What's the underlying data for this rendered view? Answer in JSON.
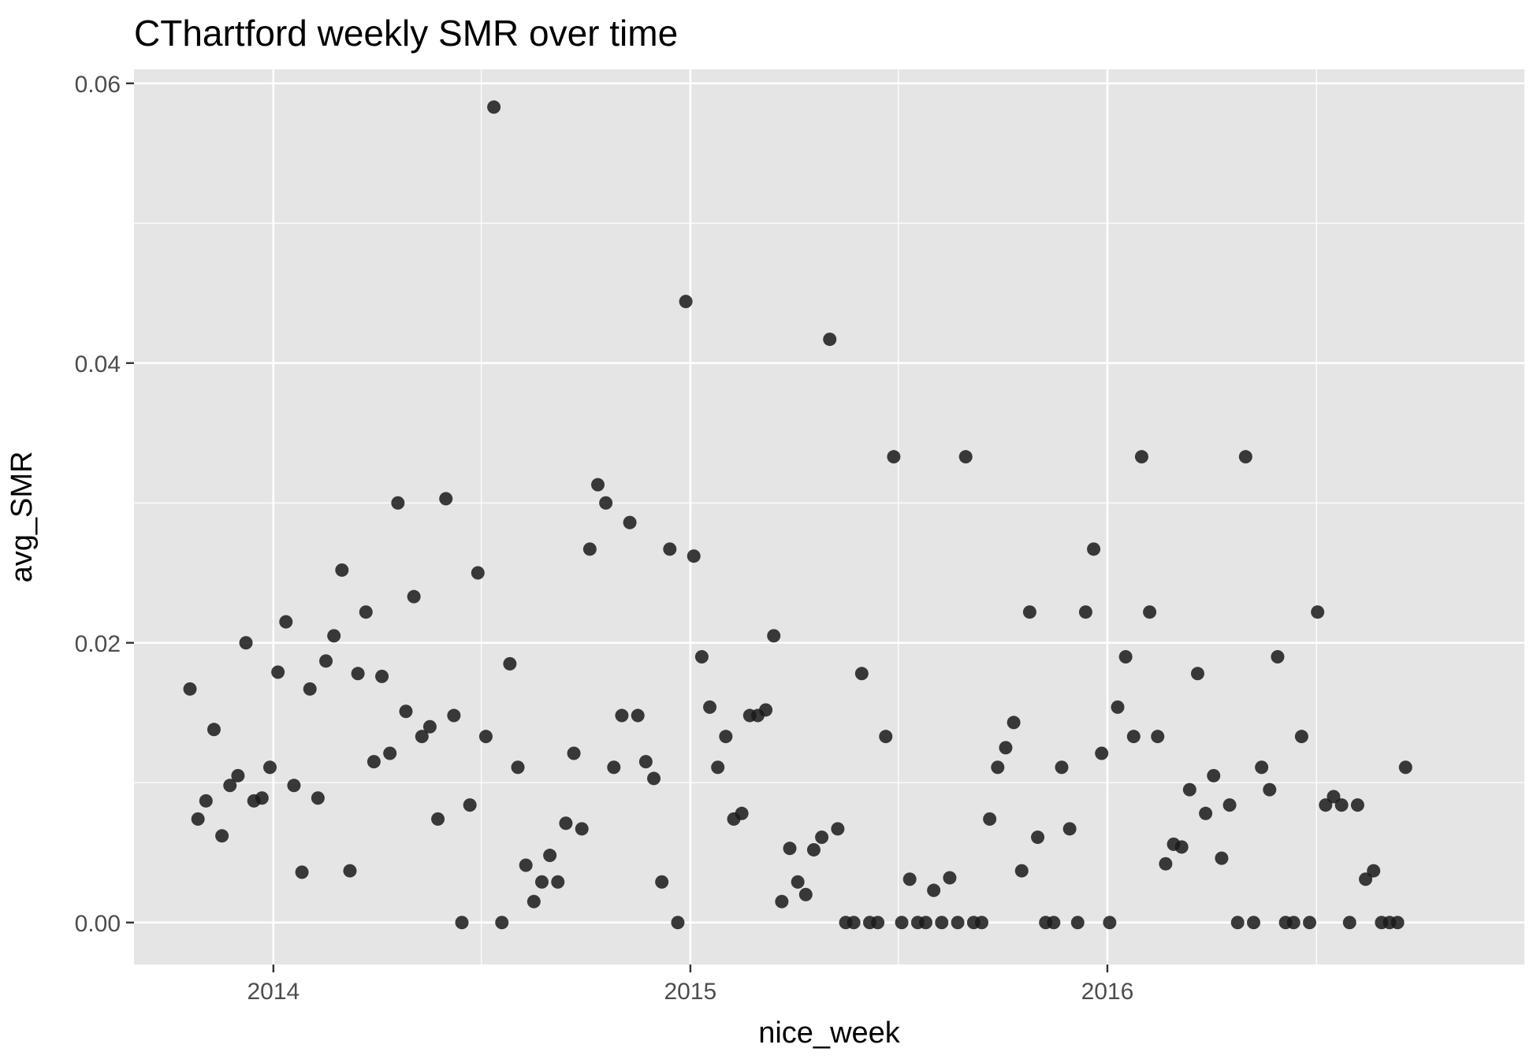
{
  "chart_data": {
    "type": "scatter",
    "title": "CThartford weekly SMR over time",
    "xlabel": "nice_week",
    "ylabel": "avg_SMR",
    "x_ticks": [
      "2014",
      "2015",
      "2016"
    ],
    "y_ticks": [
      "0.00",
      "0.02",
      "0.04",
      "0.06"
    ],
    "xlim": [
      "2013-09-01",
      "2016-12-31"
    ],
    "ylim": [
      -0.003,
      0.061
    ],
    "grid": true,
    "colors": {
      "panel_background": "#e5e5e5",
      "grid": "#ffffff",
      "point": "#1a1a1a",
      "tick_label": "#4d4d4d",
      "tick_mark": "#333333"
    },
    "series": [
      {
        "points": [
          [
            "2013-10-20",
            0.0167
          ],
          [
            "2013-10-27",
            0.0074
          ],
          [
            "2013-11-03",
            0.0087
          ],
          [
            "2013-11-10",
            0.0138
          ],
          [
            "2013-11-17",
            0.0062
          ],
          [
            "2013-11-24",
            0.0098
          ],
          [
            "2013-12-01",
            0.0105
          ],
          [
            "2013-12-08",
            0.02
          ],
          [
            "2013-12-15",
            0.0087
          ],
          [
            "2013-12-22",
            0.0089
          ],
          [
            "2013-12-29",
            0.0111
          ],
          [
            "2014-01-05",
            0.0179
          ],
          [
            "2014-01-12",
            0.0215
          ],
          [
            "2014-01-19",
            0.0098
          ],
          [
            "2014-01-26",
            0.0036
          ],
          [
            "2014-02-02",
            0.0167
          ],
          [
            "2014-02-09",
            0.0089
          ],
          [
            "2014-02-16",
            0.0187
          ],
          [
            "2014-02-23",
            0.0205
          ],
          [
            "2014-03-02",
            0.0252
          ],
          [
            "2014-03-09",
            0.0037
          ],
          [
            "2014-03-16",
            0.0178
          ],
          [
            "2014-03-23",
            0.0222
          ],
          [
            "2014-03-30",
            0.0115
          ],
          [
            "2014-04-06",
            0.0176
          ],
          [
            "2014-04-13",
            0.0121
          ],
          [
            "2014-04-20",
            0.03
          ],
          [
            "2014-04-27",
            0.0151
          ],
          [
            "2014-05-04",
            0.0233
          ],
          [
            "2014-05-11",
            0.0133
          ],
          [
            "2014-05-18",
            0.014
          ],
          [
            "2014-05-25",
            0.0074
          ],
          [
            "2014-06-01",
            0.0303
          ],
          [
            "2014-06-08",
            0.0148
          ],
          [
            "2014-06-15",
            0.0
          ],
          [
            "2014-06-22",
            0.0084
          ],
          [
            "2014-06-29",
            0.025
          ],
          [
            "2014-07-06",
            0.0133
          ],
          [
            "2014-07-13",
            0.0583
          ],
          [
            "2014-07-20",
            0.0
          ],
          [
            "2014-07-27",
            0.0185
          ],
          [
            "2014-08-03",
            0.0111
          ],
          [
            "2014-08-10",
            0.0041
          ],
          [
            "2014-08-17",
            0.0015
          ],
          [
            "2014-08-24",
            0.0029
          ],
          [
            "2014-08-31",
            0.0048
          ],
          [
            "2014-09-07",
            0.0029
          ],
          [
            "2014-09-14",
            0.0071
          ],
          [
            "2014-09-21",
            0.0121
          ],
          [
            "2014-09-28",
            0.0067
          ],
          [
            "2014-10-05",
            0.0267
          ],
          [
            "2014-10-12",
            0.0313
          ],
          [
            "2014-10-19",
            0.03
          ],
          [
            "2014-10-26",
            0.0111
          ],
          [
            "2014-11-02",
            0.0148
          ],
          [
            "2014-11-09",
            0.0286
          ],
          [
            "2014-11-16",
            0.0148
          ],
          [
            "2014-11-23",
            0.0115
          ],
          [
            "2014-11-30",
            0.0103
          ],
          [
            "2014-12-07",
            0.0029
          ],
          [
            "2014-12-14",
            0.0267
          ],
          [
            "2014-12-21",
            0.0
          ],
          [
            "2014-12-28",
            0.0444
          ],
          [
            "2015-01-04",
            0.0262
          ],
          [
            "2015-01-11",
            0.019
          ],
          [
            "2015-01-18",
            0.0154
          ],
          [
            "2015-01-25",
            0.0111
          ],
          [
            "2015-02-01",
            0.0133
          ],
          [
            "2015-02-08",
            0.0074
          ],
          [
            "2015-02-15",
            0.0078
          ],
          [
            "2015-02-22",
            0.0148
          ],
          [
            "2015-03-01",
            0.0148
          ],
          [
            "2015-03-08",
            0.0152
          ],
          [
            "2015-03-15",
            0.0205
          ],
          [
            "2015-03-22",
            0.0015
          ],
          [
            "2015-03-29",
            0.0053
          ],
          [
            "2015-04-05",
            0.0029
          ],
          [
            "2015-04-12",
            0.002
          ],
          [
            "2015-04-19",
            0.0052
          ],
          [
            "2015-04-26",
            0.0061
          ],
          [
            "2015-05-03",
            0.0417
          ],
          [
            "2015-05-10",
            0.0067
          ],
          [
            "2015-05-17",
            0.0
          ],
          [
            "2015-05-24",
            0.0
          ],
          [
            "2015-05-31",
            0.0178
          ],
          [
            "2015-06-07",
            0.0
          ],
          [
            "2015-06-14",
            0.0
          ],
          [
            "2015-06-21",
            0.0133
          ],
          [
            "2015-06-28",
            0.0333
          ],
          [
            "2015-07-05",
            0.0
          ],
          [
            "2015-07-12",
            0.0031
          ],
          [
            "2015-07-19",
            0.0
          ],
          [
            "2015-07-26",
            0.0
          ],
          [
            "2015-08-02",
            0.0023
          ],
          [
            "2015-08-09",
            0.0
          ],
          [
            "2015-08-16",
            0.0032
          ],
          [
            "2015-08-23",
            0.0
          ],
          [
            "2015-08-30",
            0.0333
          ],
          [
            "2015-09-06",
            0.0
          ],
          [
            "2015-09-13",
            0.0
          ],
          [
            "2015-09-20",
            0.0074
          ],
          [
            "2015-09-27",
            0.0111
          ],
          [
            "2015-10-04",
            0.0125
          ],
          [
            "2015-10-11",
            0.0143
          ],
          [
            "2015-10-18",
            0.0037
          ],
          [
            "2015-10-25",
            0.0222
          ],
          [
            "2015-11-01",
            0.0061
          ],
          [
            "2015-11-08",
            0.0
          ],
          [
            "2015-11-15",
            0.0
          ],
          [
            "2015-11-22",
            0.0111
          ],
          [
            "2015-11-29",
            0.0067
          ],
          [
            "2015-12-06",
            0.0
          ],
          [
            "2015-12-13",
            0.0222
          ],
          [
            "2015-12-20",
            0.0267
          ],
          [
            "2015-12-27",
            0.0121
          ],
          [
            "2016-01-03",
            0.0
          ],
          [
            "2016-01-10",
            0.0154
          ],
          [
            "2016-01-17",
            0.019
          ],
          [
            "2016-01-24",
            0.0133
          ],
          [
            "2016-01-31",
            0.0333
          ],
          [
            "2016-02-07",
            0.0222
          ],
          [
            "2016-02-14",
            0.0133
          ],
          [
            "2016-02-21",
            0.0042
          ],
          [
            "2016-02-28",
            0.0056
          ],
          [
            "2016-03-06",
            0.0054
          ],
          [
            "2016-03-13",
            0.0095
          ],
          [
            "2016-03-20",
            0.0178
          ],
          [
            "2016-03-27",
            0.0078
          ],
          [
            "2016-04-03",
            0.0105
          ],
          [
            "2016-04-10",
            0.0046
          ],
          [
            "2016-04-17",
            0.0084
          ],
          [
            "2016-04-24",
            0.0
          ],
          [
            "2016-05-01",
            0.0333
          ],
          [
            "2016-05-08",
            0.0
          ],
          [
            "2016-05-15",
            0.0111
          ],
          [
            "2016-05-22",
            0.0095
          ],
          [
            "2016-05-29",
            0.019
          ],
          [
            "2016-06-05",
            0.0
          ],
          [
            "2016-06-12",
            0.0
          ],
          [
            "2016-06-19",
            0.0133
          ],
          [
            "2016-06-26",
            0.0
          ],
          [
            "2016-07-03",
            0.0222
          ],
          [
            "2016-07-10",
            0.0084
          ],
          [
            "2016-07-17",
            0.009
          ],
          [
            "2016-07-24",
            0.0084
          ],
          [
            "2016-07-31",
            0.0
          ],
          [
            "2016-08-07",
            0.0084
          ],
          [
            "2016-08-14",
            0.0031
          ],
          [
            "2016-08-21",
            0.0037
          ],
          [
            "2016-08-28",
            0.0
          ],
          [
            "2016-09-04",
            0.0
          ],
          [
            "2016-09-11",
            0.0
          ],
          [
            "2016-09-18",
            0.0111
          ]
        ]
      }
    ]
  }
}
